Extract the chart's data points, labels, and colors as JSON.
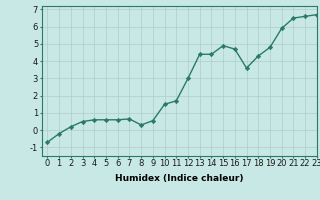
{
  "x": [
    0,
    1,
    2,
    3,
    4,
    5,
    6,
    7,
    8,
    9,
    10,
    11,
    12,
    13,
    14,
    15,
    16,
    17,
    18,
    19,
    20,
    21,
    22,
    23
  ],
  "y": [
    -0.7,
    -0.2,
    0.2,
    0.5,
    0.6,
    0.6,
    0.6,
    0.65,
    0.3,
    0.55,
    1.5,
    1.7,
    3.0,
    4.4,
    4.4,
    4.9,
    4.7,
    3.6,
    4.3,
    4.8,
    5.9,
    6.5,
    6.6,
    6.7
  ],
  "line_color": "#2a7a6a",
  "marker": "D",
  "marker_size": 2.2,
  "bg_color": "#c8e8e5",
  "grid_color": "#b0ccc9",
  "xlabel": "Humidex (Indice chaleur)",
  "xlim": [
    -0.5,
    23
  ],
  "ylim": [
    -1.5,
    7.2
  ],
  "yticks": [
    -1,
    0,
    1,
    2,
    3,
    4,
    5,
    6,
    7
  ],
  "xticks": [
    0,
    1,
    2,
    3,
    4,
    5,
    6,
    7,
    8,
    9,
    10,
    11,
    12,
    13,
    14,
    15,
    16,
    17,
    18,
    19,
    20,
    21,
    22,
    23
  ],
  "xlabel_fontsize": 6.5,
  "tick_fontsize": 6.0,
  "linewidth": 1.0
}
